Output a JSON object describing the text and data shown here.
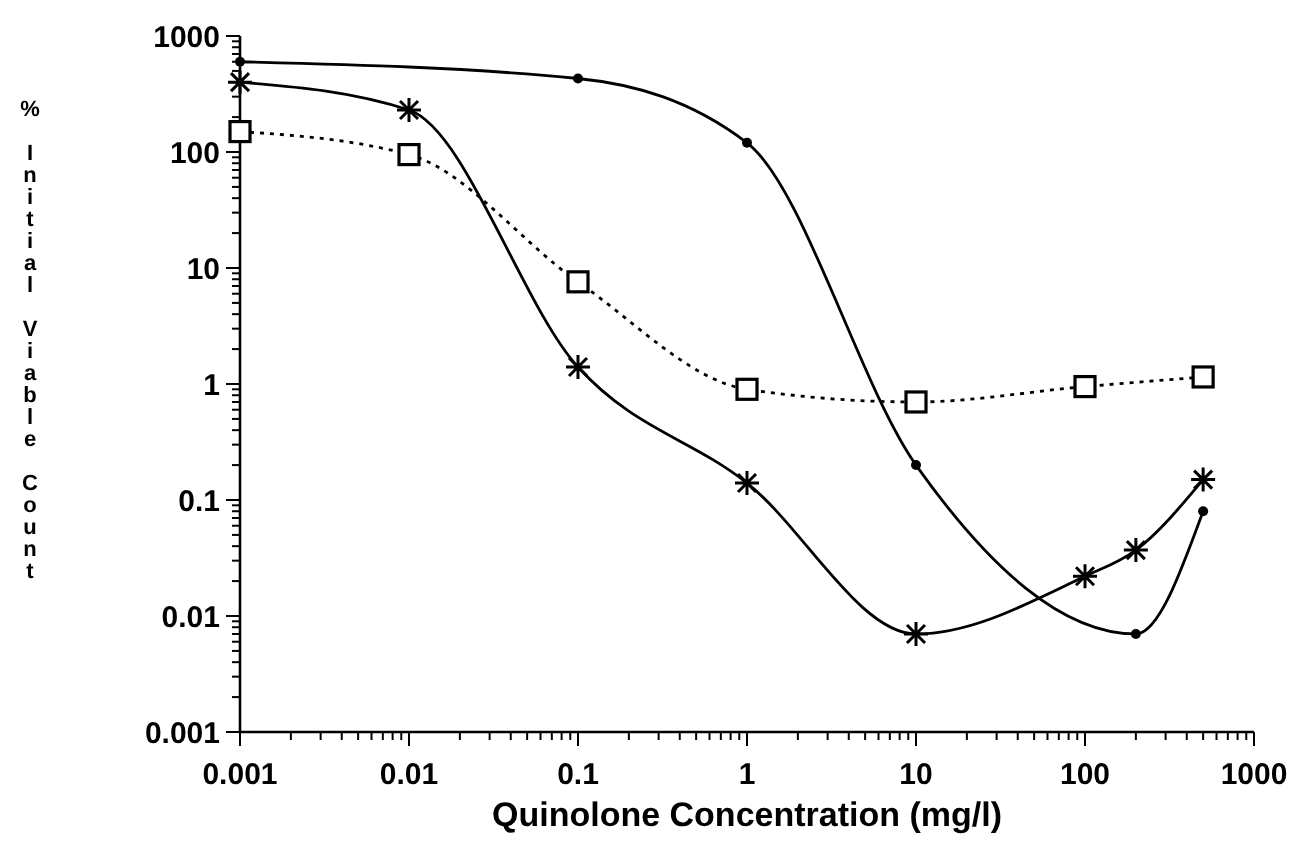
{
  "chart_data": {
    "type": "line",
    "xlabel": "Quinolone Concentration (mg/l)",
    "ylabel": "% Initial Viable Count",
    "log": "xy",
    "grid": false,
    "xlim": [
      0.001,
      1000
    ],
    "ylim": [
      0.001,
      1000
    ],
    "xticks": [
      0.001,
      {
        "value": 0.002,
        "label": null
      },
      {
        "value": 0.003,
        "label": null
      },
      {
        "value": 0.004,
        "label": null
      },
      {
        "value": 0.005,
        "label": null
      },
      {
        "value": 0.006,
        "label": null
      },
      {
        "value": 0.007,
        "label": null
      },
      {
        "value": 0.008,
        "label": null
      },
      {
        "value": 0.009,
        "label": null
      },
      0.01,
      {
        "value": 0.02,
        "label": null
      },
      {
        "value": 0.03,
        "label": null
      },
      {
        "value": 0.04,
        "label": null
      },
      {
        "value": 0.05,
        "label": null
      },
      {
        "value": 0.06,
        "label": null
      },
      {
        "value": 0.07,
        "label": null
      },
      {
        "value": 0.08,
        "label": null
      },
      {
        "value": 0.09,
        "label": null
      },
      0.1,
      {
        "value": 0.2,
        "label": null
      },
      {
        "value": 0.3,
        "label": null
      },
      {
        "value": 0.4,
        "label": null
      },
      {
        "value": 0.5,
        "label": null
      },
      {
        "value": 0.6,
        "label": null
      },
      {
        "value": 0.7,
        "label": null
      },
      {
        "value": 0.8,
        "label": null
      },
      {
        "value": 0.9,
        "label": null
      },
      1,
      {
        "value": 2,
        "label": null
      },
      {
        "value": 3,
        "label": null
      },
      {
        "value": 4,
        "label": null
      },
      {
        "value": 5,
        "label": null
      },
      {
        "value": 6,
        "label": null
      },
      {
        "value": 7,
        "label": null
      },
      {
        "value": 8,
        "label": null
      },
      {
        "value": 9,
        "label": null
      },
      10,
      {
        "value": 20,
        "label": null
      },
      {
        "value": 30,
        "label": null
      },
      {
        "value": 40,
        "label": null
      },
      {
        "value": 50,
        "label": null
      },
      {
        "value": 60,
        "label": null
      },
      {
        "value": 70,
        "label": null
      },
      {
        "value": 80,
        "label": null
      },
      {
        "value": 90,
        "label": null
      },
      100,
      {
        "value": 200,
        "label": null
      },
      {
        "value": 300,
        "label": null
      },
      {
        "value": 400,
        "label": null
      },
      {
        "value": 500,
        "label": null
      },
      {
        "value": 600,
        "label": null
      },
      {
        "value": 700,
        "label": null
      },
      {
        "value": 800,
        "label": null
      },
      {
        "value": 900,
        "label": null
      },
      1000
    ],
    "yticks": [
      0.001,
      {
        "value": 0.002,
        "label": null
      },
      {
        "value": 0.003,
        "label": null
      },
      {
        "value": 0.004,
        "label": null
      },
      {
        "value": 0.005,
        "label": null
      },
      {
        "value": 0.006,
        "label": null
      },
      {
        "value": 0.007,
        "label": null
      },
      {
        "value": 0.008,
        "label": null
      },
      {
        "value": 0.009,
        "label": null
      },
      0.01,
      {
        "value": 0.02,
        "label": null
      },
      {
        "value": 0.03,
        "label": null
      },
      {
        "value": 0.04,
        "label": null
      },
      {
        "value": 0.05,
        "label": null
      },
      {
        "value": 0.06,
        "label": null
      },
      {
        "value": 0.07,
        "label": null
      },
      {
        "value": 0.08,
        "label": null
      },
      {
        "value": 0.09,
        "label": null
      },
      0.1,
      {
        "value": 0.2,
        "label": null
      },
      {
        "value": 0.3,
        "label": null
      },
      {
        "value": 0.4,
        "label": null
      },
      {
        "value": 0.5,
        "label": null
      },
      {
        "value": 0.6,
        "label": null
      },
      {
        "value": 0.7,
        "label": null
      },
      {
        "value": 0.8,
        "label": null
      },
      {
        "value": 0.9,
        "label": null
      },
      1,
      {
        "value": 2,
        "label": null
      },
      {
        "value": 3,
        "label": null
      },
      {
        "value": 4,
        "label": null
      },
      {
        "value": 5,
        "label": null
      },
      {
        "value": 6,
        "label": null
      },
      {
        "value": 7,
        "label": null
      },
      {
        "value": 8,
        "label": null
      },
      {
        "value": 9,
        "label": null
      },
      10,
      {
        "value": 20,
        "label": null
      },
      {
        "value": 30,
        "label": null
      },
      {
        "value": 40,
        "label": null
      },
      {
        "value": 50,
        "label": null
      },
      {
        "value": 60,
        "label": null
      },
      {
        "value": 70,
        "label": null
      },
      {
        "value": 80,
        "label": null
      },
      {
        "value": 90,
        "label": null
      },
      100,
      {
        "value": 200,
        "label": null
      },
      {
        "value": 300,
        "label": null
      },
      {
        "value": 400,
        "label": null
      },
      {
        "value": 500,
        "label": null
      },
      {
        "value": 600,
        "label": null
      },
      {
        "value": 700,
        "label": null
      },
      {
        "value": 800,
        "label": null
      },
      {
        "value": 900,
        "label": null
      },
      1000
    ],
    "series": [
      {
        "color": "#000000",
        "marker": "circle",
        "line_style": "solid",
        "x": [
          0.001,
          0.1,
          1,
          10,
          200,
          500
        ],
        "values": [
          600,
          430,
          120,
          0.2,
          0.007,
          0.08
        ]
      },
      {
        "color": "#000000",
        "marker": "cross",
        "line_style": "solid",
        "x": [
          0.001,
          0.01,
          0.1,
          1,
          10,
          100,
          200,
          500
        ],
        "values": [
          400,
          230,
          1.4,
          0.14,
          0.007,
          0.022,
          0.037,
          0.15
        ]
      },
      {
        "color": "#000000",
        "marker": "square",
        "line_style": "dotted",
        "x": [
          0.001,
          0.01,
          0.1,
          1,
          10,
          100,
          500
        ],
        "values": [
          150,
          95,
          7.6,
          0.9,
          0.7,
          0.95,
          1.15
        ]
      }
    ]
  }
}
